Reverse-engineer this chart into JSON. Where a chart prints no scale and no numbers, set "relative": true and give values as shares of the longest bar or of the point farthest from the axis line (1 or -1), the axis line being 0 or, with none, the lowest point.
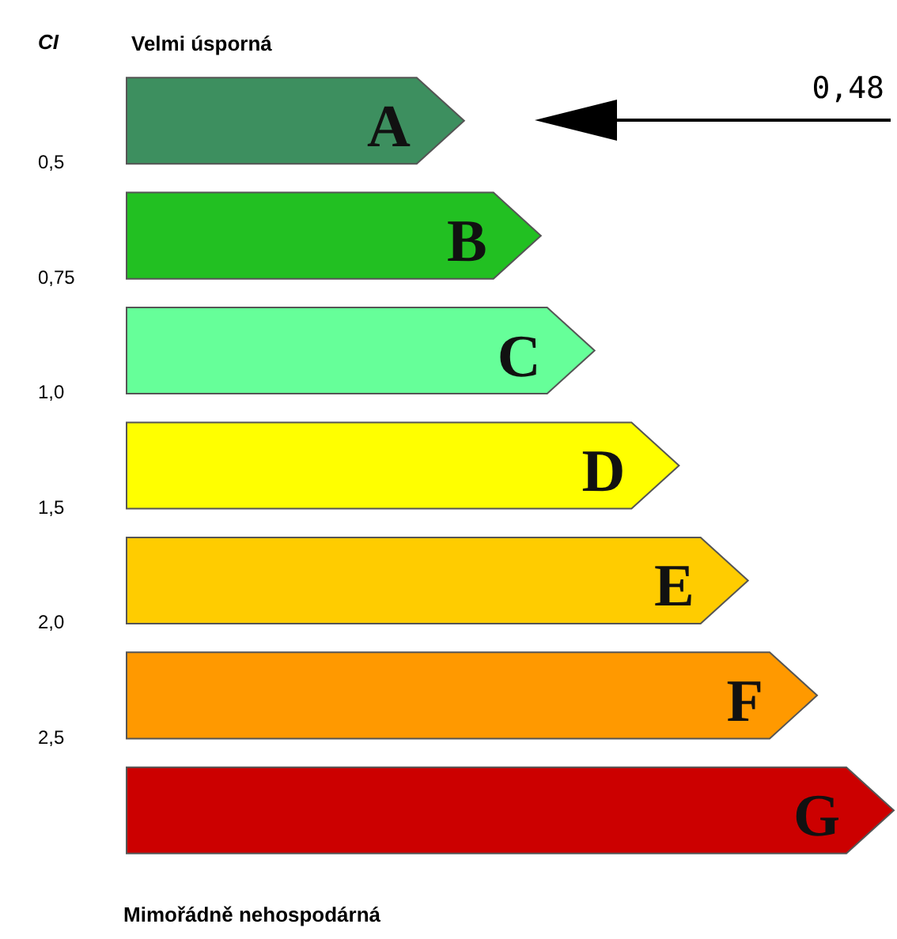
{
  "chart_data": {
    "type": "bar",
    "orientation": "horizontal",
    "relative": true,
    "title": "Velmi úsporná",
    "ylabel": "CI",
    "categories": [
      "A",
      "B",
      "C",
      "D",
      "E",
      "F",
      "G"
    ],
    "values": [
      0.44,
      0.54,
      0.61,
      0.72,
      0.81,
      0.9,
      1.0
    ],
    "colors": [
      "#3d8f5f",
      "#22c022",
      "#66ff99",
      "#ffff00",
      "#ffcc00",
      "#ff9900",
      "#cc0000"
    ],
    "annotations": [
      "0,5",
      "0,75",
      "1,0",
      "1,5",
      "2,0",
      "2,5",
      "0,48",
      "Mimořádně nehospodárná"
    ]
  }
}
